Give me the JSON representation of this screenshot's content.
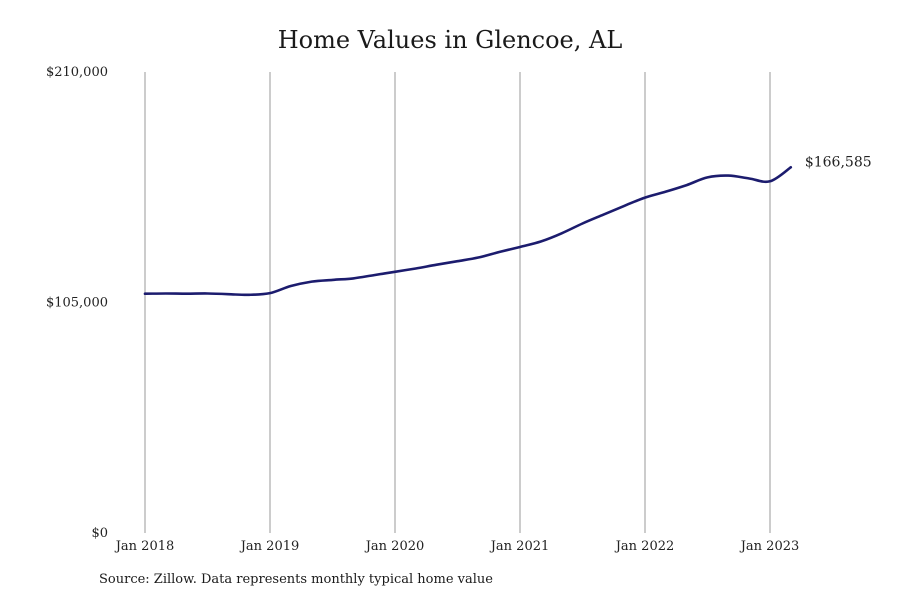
{
  "chart_data": {
    "type": "line",
    "title": "Home Values in Glencoe, AL",
    "xlabel": "",
    "ylabel": "",
    "ylim": [
      0,
      210000
    ],
    "y_ticks": [
      {
        "value": 0,
        "label": "$0"
      },
      {
        "value": 105000,
        "label": "$105,000"
      },
      {
        "value": 210000,
        "label": "$210,000"
      }
    ],
    "x_ticks": [
      {
        "date": "2018-01",
        "label": "Jan 2018"
      },
      {
        "date": "2019-01",
        "label": "Jan 2019"
      },
      {
        "date": "2020-01",
        "label": "Jan 2020"
      },
      {
        "date": "2021-01",
        "label": "Jan 2021"
      },
      {
        "date": "2022-01",
        "label": "Jan 2022"
      },
      {
        "date": "2023-01",
        "label": "Jan 2023"
      }
    ],
    "grid": "vertical",
    "line_color": "#1c1c6e",
    "end_label": "$166,585",
    "series": [
      {
        "values": [
          {
            "x": "2018-01",
            "y": 109000
          },
          {
            "x": "2018-03",
            "y": 109100
          },
          {
            "x": "2018-05",
            "y": 109000
          },
          {
            "x": "2018-07",
            "y": 109100
          },
          {
            "x": "2018-09",
            "y": 108800
          },
          {
            "x": "2018-11",
            "y": 108500
          },
          {
            "x": "2019-01",
            "y": 109300
          },
          {
            "x": "2019-03",
            "y": 112500
          },
          {
            "x": "2019-05",
            "y": 114500
          },
          {
            "x": "2019-07",
            "y": 115300
          },
          {
            "x": "2019-09",
            "y": 116000
          },
          {
            "x": "2019-11",
            "y": 117500
          },
          {
            "x": "2020-01",
            "y": 119000
          },
          {
            "x": "2020-03",
            "y": 120500
          },
          {
            "x": "2020-05",
            "y": 122200
          },
          {
            "x": "2020-07",
            "y": 123800
          },
          {
            "x": "2020-09",
            "y": 125500
          },
          {
            "x": "2020-11",
            "y": 128000
          },
          {
            "x": "2021-01",
            "y": 130300
          },
          {
            "x": "2021-03",
            "y": 132800
          },
          {
            "x": "2021-05",
            "y": 136500
          },
          {
            "x": "2021-07",
            "y": 141000
          },
          {
            "x": "2021-09",
            "y": 145000
          },
          {
            "x": "2021-11",
            "y": 149000
          },
          {
            "x": "2022-01",
            "y": 152800
          },
          {
            "x": "2022-03",
            "y": 155500
          },
          {
            "x": "2022-05",
            "y": 158500
          },
          {
            "x": "2022-07",
            "y": 162000
          },
          {
            "x": "2022-09",
            "y": 162800
          },
          {
            "x": "2022-11",
            "y": 161500
          },
          {
            "x": "2023-01",
            "y": 160200
          },
          {
            "x": "2023-03",
            "y": 166585
          }
        ]
      }
    ]
  },
  "source": "Source: Zillow. Data represents monthly typical home value"
}
